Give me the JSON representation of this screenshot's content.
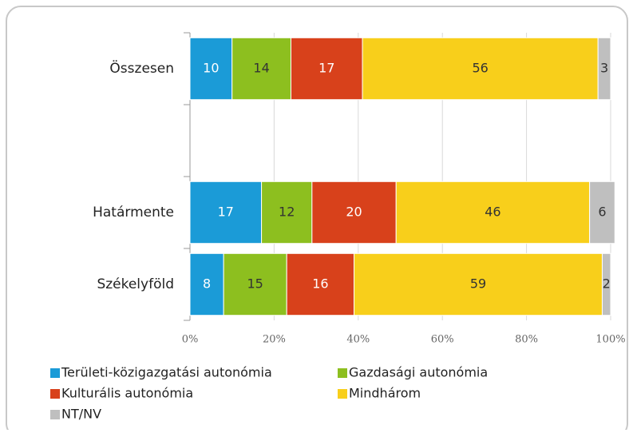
{
  "chart_data": {
    "type": "stacked-barh",
    "categories": [
      "Összesen",
      null,
      "Határmente",
      "Székelyföld"
    ],
    "series": [
      {
        "name": "Területi-közigazgatási autonómia",
        "color": "#1b9bd7",
        "label_color": "#ffffff",
        "values": [
          10,
          null,
          17,
          8
        ]
      },
      {
        "name": "Gazdasági autonómia",
        "color": "#8dbf1f",
        "label_color": "#333333",
        "values": [
          14,
          null,
          12,
          15
        ]
      },
      {
        "name": "Kulturális autonómia",
        "color": "#d8411b",
        "label_color": "#ffffff",
        "values": [
          17,
          null,
          20,
          16
        ]
      },
      {
        "name": "Mindhárom",
        "color": "#f8cf1b",
        "label_color": "#333333",
        "values": [
          56,
          null,
          46,
          59
        ]
      },
      {
        "name": "NT/NV",
        "color": "#bfbfbf",
        "label_color": "#333333",
        "values": [
          3,
          null,
          6,
          2
        ]
      }
    ],
    "xlim": [
      0,
      100
    ],
    "xticks": [
      {
        "value": 0,
        "label": "0%"
      },
      {
        "value": 20,
        "label": "20%"
      },
      {
        "value": 40,
        "label": "40%"
      },
      {
        "value": 60,
        "label": "60%"
      },
      {
        "value": 80,
        "label": "80%"
      },
      {
        "value": 100,
        "label": "100%"
      }
    ],
    "grid": true
  }
}
